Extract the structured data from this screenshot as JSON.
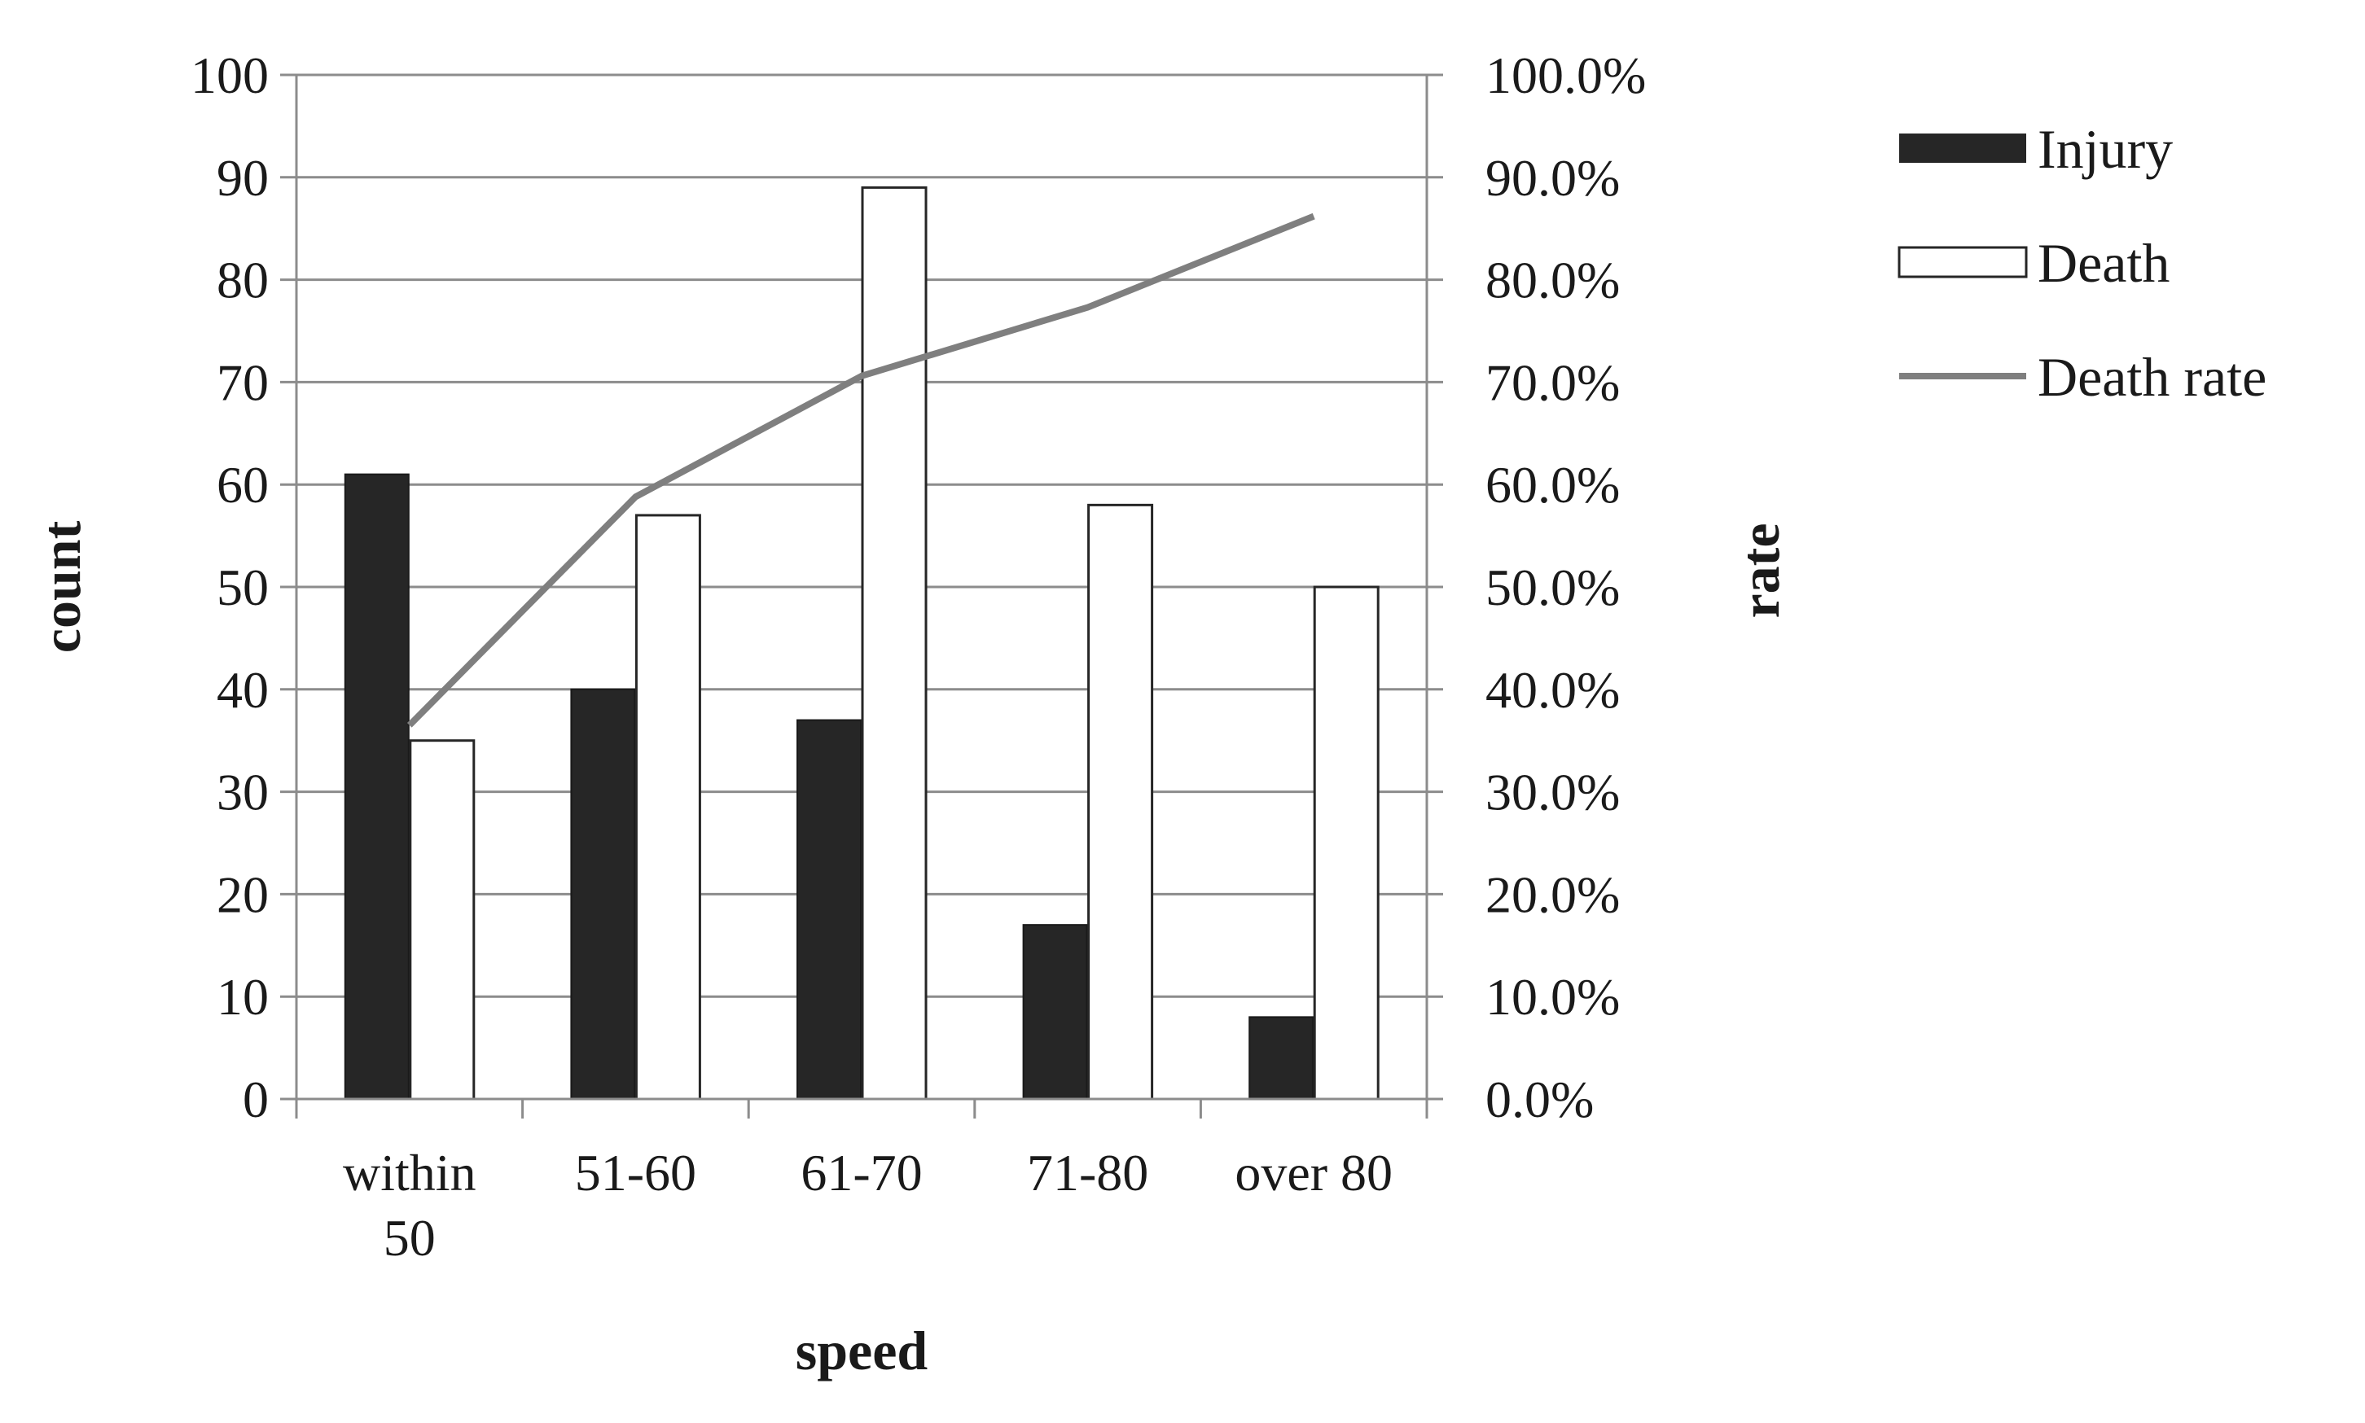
{
  "chart_data": {
    "type": "bar",
    "title": "",
    "xlabel": "speed",
    "ylabel": "count",
    "y2label": "rate",
    "categories": [
      [
        "within",
        "50"
      ],
      [
        "51-60"
      ],
      [
        "61-70"
      ],
      [
        "71-80"
      ],
      [
        "over 80"
      ]
    ],
    "ylim": [
      0,
      100
    ],
    "y_ticks": [
      "0",
      "10",
      "20",
      "30",
      "40",
      "50",
      "60",
      "70",
      "80",
      "90",
      "100"
    ],
    "y2lim": [
      0,
      100
    ],
    "y2_ticks": [
      "0.0%",
      "10.0%",
      "20.0%",
      "30.0%",
      "40.0%",
      "50.0%",
      "60.0%",
      "70.0%",
      "80.0%",
      "90.0%",
      "100.0%"
    ],
    "grid": true,
    "legend_position": "top-right",
    "series": [
      {
        "name": "Injury",
        "type": "bar",
        "axis": "left",
        "color": "#262626",
        "values": [
          61,
          40,
          37,
          17,
          8
        ]
      },
      {
        "name": "Death",
        "type": "bar",
        "axis": "right-none",
        "color": "#ffffff",
        "values": [
          35,
          57,
          89,
          58,
          50
        ]
      },
      {
        "name": "Death rate",
        "type": "line",
        "axis": "right",
        "color": "#7f7f7f",
        "values": [
          36.5,
          58.8,
          70.6,
          77.3,
          86.2
        ]
      }
    ]
  }
}
